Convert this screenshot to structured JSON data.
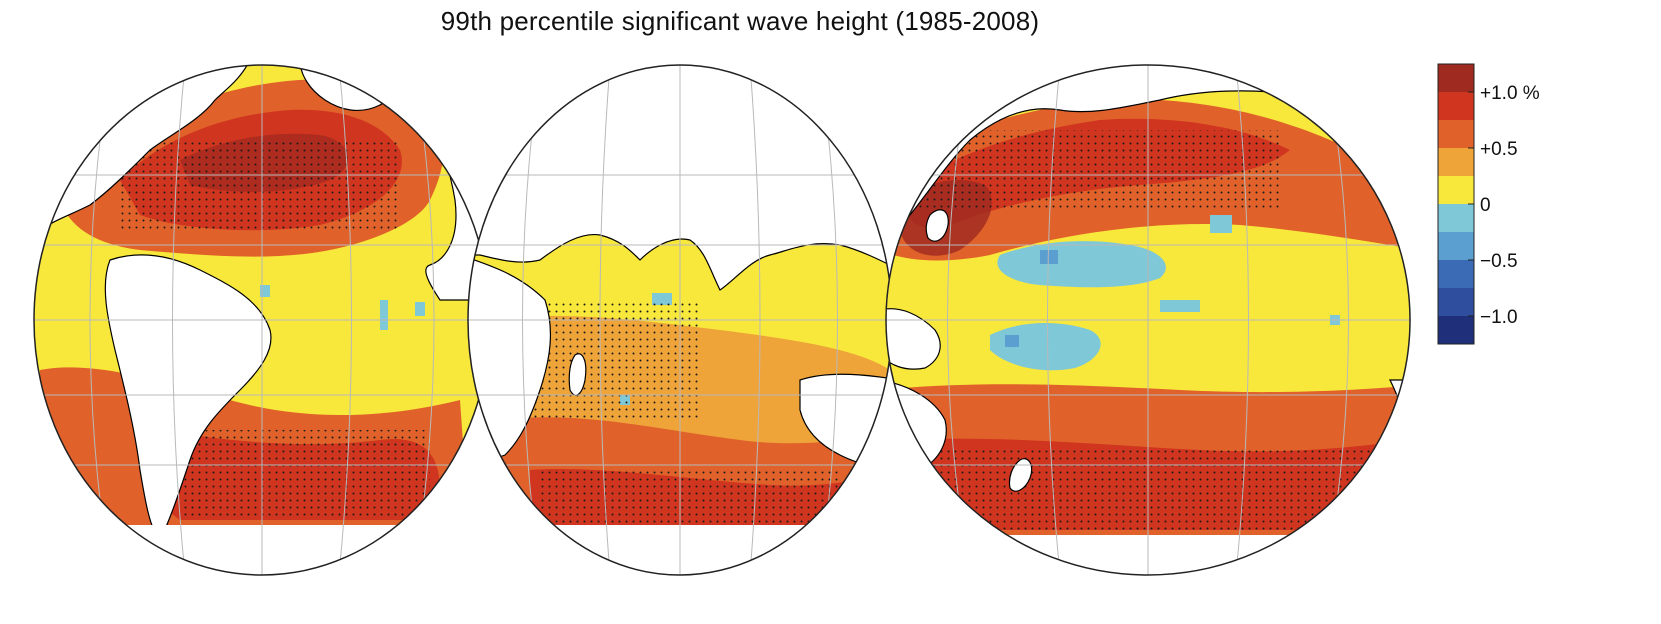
{
  "title": "99th percentile significant wave height (1985-2008)",
  "projection": "interrupted-global-map",
  "lobes": [
    "Atlantic",
    "Indian",
    "Pacific"
  ],
  "colorbar": {
    "orientation": "vertical",
    "placement": "right",
    "ticks": [
      {
        "value": 1.0,
        "label": "+1.0 %"
      },
      {
        "value": 0.5,
        "label": "+0.5"
      },
      {
        "value": 0,
        "label": "0"
      },
      {
        "value": -0.5,
        "label": "−0.5"
      },
      {
        "value": -1.0,
        "label": "−1.0"
      }
    ],
    "bins": [
      {
        "from": 1.0,
        "to": 1.25,
        "color": "#9e2a20"
      },
      {
        "from": 0.75,
        "to": 1.0,
        "color": "#d0351f"
      },
      {
        "from": 0.5,
        "to": 0.75,
        "color": "#e0622a"
      },
      {
        "from": 0.25,
        "to": 0.5,
        "color": "#efa43a"
      },
      {
        "from": 0,
        "to": 0.25,
        "color": "#f8e83c"
      },
      {
        "from": -0.25,
        "to": 0,
        "color": "#7fc8d8"
      },
      {
        "from": -0.5,
        "to": -0.25,
        "color": "#5b9fd0"
      },
      {
        "from": -0.75,
        "to": -0.5,
        "color": "#3b6bb5"
      },
      {
        "from": -1.0,
        "to": -0.75,
        "color": "#2f4e9e"
      },
      {
        "from": -1.25,
        "to": -1.0,
        "color": "#1f2f7a"
      }
    ]
  },
  "colors": {
    "land": "#ffffff",
    "coast": "#000000",
    "graticule": "#b9b9b9",
    "outline": "#222222",
    "significance_dots": "#1a1a1a"
  }
}
